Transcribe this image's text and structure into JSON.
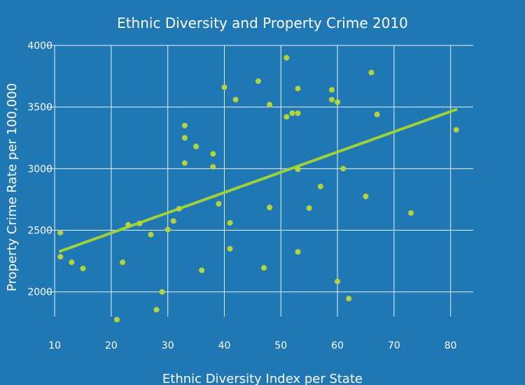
{
  "chart_data": {
    "type": "scatter",
    "title": "Ethnic Diversity and Property Crime 2010",
    "xlabel": "Ethnic Diversity Index per State",
    "ylabel": "Property Crime Rate per 100,000",
    "xlim": [
      8.5,
      84
    ],
    "ylim": [
      1800,
      4000
    ],
    "x_ticks": [
      10,
      20,
      30,
      40,
      50,
      60,
      70,
      80
    ],
    "y_ticks": [
      2000,
      2500,
      3000,
      3500,
      4000
    ],
    "grid": true,
    "colors": {
      "background": "#1f77b4",
      "marker": "#b5d33d",
      "trendline": "#9fd23a",
      "grid": "#ffffff"
    },
    "points": [
      {
        "x": 11,
        "y": 2480
      },
      {
        "x": 11,
        "y": 2285
      },
      {
        "x": 13,
        "y": 2240
      },
      {
        "x": 15,
        "y": 2190
      },
      {
        "x": 21,
        "y": 1775
      },
      {
        "x": 22,
        "y": 2240
      },
      {
        "x": 23,
        "y": 2545
      },
      {
        "x": 25,
        "y": 2555
      },
      {
        "x": 27,
        "y": 2465
      },
      {
        "x": 28,
        "y": 1855
      },
      {
        "x": 29,
        "y": 2000
      },
      {
        "x": 30,
        "y": 2505
      },
      {
        "x": 31,
        "y": 2575
      },
      {
        "x": 32,
        "y": 2675
      },
      {
        "x": 33,
        "y": 3350
      },
      {
        "x": 33,
        "y": 3250
      },
      {
        "x": 33,
        "y": 3045
      },
      {
        "x": 35,
        "y": 3180
      },
      {
        "x": 36,
        "y": 2175
      },
      {
        "x": 38,
        "y": 3120
      },
      {
        "x": 38,
        "y": 3015
      },
      {
        "x": 39,
        "y": 2715
      },
      {
        "x": 40,
        "y": 3660
      },
      {
        "x": 41,
        "y": 2560
      },
      {
        "x": 41,
        "y": 2350
      },
      {
        "x": 42,
        "y": 3560
      },
      {
        "x": 46,
        "y": 3710
      },
      {
        "x": 47,
        "y": 2195
      },
      {
        "x": 48,
        "y": 3520
      },
      {
        "x": 48,
        "y": 2685
      },
      {
        "x": 51,
        "y": 3900
      },
      {
        "x": 51,
        "y": 3420
      },
      {
        "x": 52,
        "y": 3450
      },
      {
        "x": 53,
        "y": 3650
      },
      {
        "x": 53,
        "y": 3450
      },
      {
        "x": 53,
        "y": 2995
      },
      {
        "x": 53,
        "y": 2325
      },
      {
        "x": 55,
        "y": 2680
      },
      {
        "x": 57,
        "y": 2855
      },
      {
        "x": 59,
        "y": 3640
      },
      {
        "x": 59,
        "y": 3560
      },
      {
        "x": 60,
        "y": 3540
      },
      {
        "x": 60,
        "y": 2085
      },
      {
        "x": 61,
        "y": 3000
      },
      {
        "x": 62,
        "y": 1945
      },
      {
        "x": 65,
        "y": 2775
      },
      {
        "x": 66,
        "y": 3780
      },
      {
        "x": 67,
        "y": 3440
      },
      {
        "x": 73,
        "y": 2640
      },
      {
        "x": 81,
        "y": 3315
      }
    ],
    "trendline": [
      {
        "x": 11,
        "y": 2330
      },
      {
        "x": 81,
        "y": 3480
      }
    ]
  }
}
